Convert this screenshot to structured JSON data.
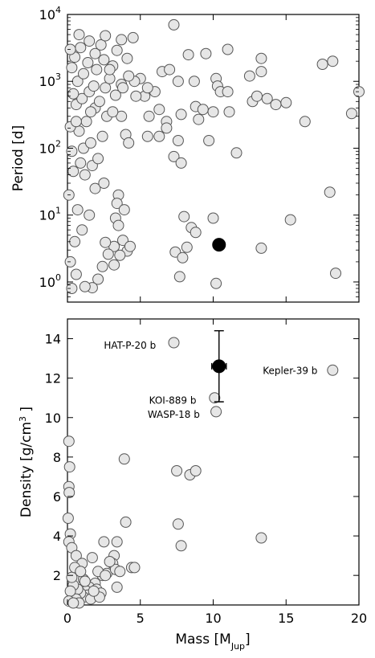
{
  "chart_data": [
    {
      "type": "scatter",
      "ylabel": "Period [d]",
      "xlim": [
        0,
        20
      ],
      "ylim": [
        0.5,
        10000
      ],
      "yscale": "log",
      "y_ticks": [
        {
          "value": 1,
          "base": "10",
          "exp": "0"
        },
        {
          "value": 10,
          "base": "10",
          "exp": "1"
        },
        {
          "value": 100,
          "base": "10",
          "exp": "2"
        },
        {
          "value": 1000,
          "base": "10",
          "exp": "3"
        },
        {
          "value": 10000,
          "base": "10",
          "exp": "4"
        }
      ],
      "grid": false,
      "series": [
        {
          "values": [
            [
              7.3,
              7000
            ],
            [
              9.5,
              2600
            ],
            [
              11,
              3000
            ],
            [
              13.3,
              2200
            ],
            [
              18.2,
              2000
            ],
            [
              17.5,
              1800
            ],
            [
              8.3,
              2500
            ],
            [
              6.5,
              1400
            ],
            [
              7,
              1500
            ],
            [
              7.6,
              1000
            ],
            [
              8.7,
              1000
            ],
            [
              10.2,
              1100
            ],
            [
              10.3,
              850
            ],
            [
              12.5,
              1200
            ],
            [
              13.3,
              1400
            ],
            [
              10.5,
              700
            ],
            [
              11,
              700
            ],
            [
              12.7,
              500
            ],
            [
              13,
              600
            ],
            [
              13.7,
              550
            ],
            [
              14.3,
              450
            ],
            [
              15,
              480
            ],
            [
              16.3,
              250
            ],
            [
              19.5,
              330
            ],
            [
              20,
              700
            ],
            [
              8.8,
              420
            ],
            [
              9.3,
              380
            ],
            [
              10,
              350
            ],
            [
              11.1,
              350
            ],
            [
              9,
              270
            ],
            [
              6.8,
              250
            ],
            [
              7.8,
              320
            ],
            [
              6.8,
              200
            ],
            [
              6.3,
              150
            ],
            [
              7.6,
              130
            ],
            [
              9.7,
              130
            ],
            [
              11.6,
              85
            ],
            [
              7.3,
              75
            ],
            [
              7.8,
              60
            ],
            [
              5.5,
              150
            ],
            [
              5,
              1100
            ],
            [
              5.3,
              600
            ],
            [
              5.6,
              300
            ],
            [
              6,
              700
            ],
            [
              6.3,
              380
            ],
            [
              5.5,
              800
            ],
            [
              4,
              160
            ],
            [
              3.7,
              300
            ],
            [
              4.2,
              120
            ],
            [
              4.6,
              1000
            ],
            [
              18,
              22
            ],
            [
              15.3,
              8.5
            ],
            [
              13.3,
              3.2
            ],
            [
              10,
              9
            ],
            [
              10.2,
              0.95
            ],
            [
              8,
              9.5
            ],
            [
              8.5,
              6.5
            ],
            [
              8.8,
              5.5
            ],
            [
              8.2,
              3.3
            ],
            [
              7.4,
              2.8
            ],
            [
              7.9,
              2.3
            ],
            [
              7.7,
              1.2
            ],
            [
              18.4,
              1.35
            ],
            [
              4.1,
              2.9
            ],
            [
              3.8,
              4.2
            ],
            [
              4.3,
              3.4
            ],
            [
              3.5,
              20
            ],
            [
              3.4,
              15
            ],
            [
              3.9,
              12
            ],
            [
              3.3,
              9
            ],
            [
              3.5,
              7
            ],
            [
              3.2,
              1.8
            ],
            [
              3.6,
              2.5
            ],
            [
              3.2,
              3.4
            ],
            [
              2.8,
              2.6
            ],
            [
              2.6,
              3.9
            ],
            [
              2.4,
              1.7
            ],
            [
              2.1,
              1.1
            ],
            [
              1.7,
              0.82
            ],
            [
              1.2,
              0.85
            ],
            [
              0.3,
              0.8
            ],
            [
              0.6,
              1.3
            ],
            [
              0.2,
              2
            ],
            [
              0.5,
              4
            ],
            [
              1,
              6
            ],
            [
              1.5,
              10
            ],
            [
              0.7,
              12
            ],
            [
              0.1,
              20
            ],
            [
              1.9,
              25
            ],
            [
              2.5,
              30
            ],
            [
              1.2,
              40
            ],
            [
              0.4,
              45
            ],
            [
              0.9,
              60
            ],
            [
              1.7,
              55
            ],
            [
              2.1,
              70
            ],
            [
              0.3,
              90
            ],
            [
              1.1,
              100
            ],
            [
              1.6,
              120
            ],
            [
              2.4,
              150
            ],
            [
              0.8,
              180
            ],
            [
              0.2,
              210
            ],
            [
              1.3,
              250
            ],
            [
              2.7,
              300
            ],
            [
              3.1,
              350
            ],
            [
              1.9,
              400
            ],
            [
              0.6,
              450
            ],
            [
              2.2,
              500
            ],
            [
              1,
              550
            ],
            [
              3.3,
              620
            ],
            [
              0.4,
              650
            ],
            [
              1.5,
              700
            ],
            [
              2.6,
              800
            ],
            [
              1.8,
              850
            ],
            [
              3.7,
              900
            ],
            [
              0.7,
              1000
            ],
            [
              2.9,
              1100
            ],
            [
              4.2,
              1200
            ],
            [
              1.1,
              1300
            ],
            [
              2,
              1500
            ],
            [
              0.3,
              1600
            ],
            [
              3.1,
              1700
            ],
            [
              1.4,
              1900
            ],
            [
              2.5,
              2100
            ],
            [
              0.5,
              2300
            ],
            [
              1.9,
              2600
            ],
            [
              3.4,
              2900
            ],
            [
              0.9,
              3200
            ],
            [
              2.3,
              3500
            ],
            [
              1.5,
              4000
            ],
            [
              3.7,
              4200
            ],
            [
              0.8,
              5000
            ],
            [
              4.5,
              4500
            ],
            [
              2.6,
              4800
            ],
            [
              0.2,
              3000
            ],
            [
              4.1,
              2200
            ],
            [
              2.9,
              1500
            ],
            [
              3.8,
              800
            ],
            [
              4.7,
              600
            ],
            [
              1.6,
              350
            ],
            [
              0.6,
              250
            ]
          ]
        },
        {
          "values": [
            [
              10.4,
              3.6
            ]
          ],
          "xerr": 0.35,
          "highlight": true
        }
      ]
    },
    {
      "type": "scatter",
      "xlabel": "Mass [M",
      "xlabel_sub": "Jup",
      "xlabel_end": "]",
      "ylabel": "Density [g/cm",
      "ylabel_sup": "3",
      "ylabel_end": " ]",
      "xlim": [
        0,
        20
      ],
      "ylim": [
        0.5,
        15
      ],
      "x_ticks": [
        "0",
        "5",
        "10",
        "15",
        "20"
      ],
      "y_ticks": [
        "2",
        "4",
        "6",
        "8",
        "10",
        "12",
        "14"
      ],
      "grid": false,
      "annotations": [
        {
          "text": "HAT-P-20 b",
          "x": 2.5,
          "y": 13.5
        },
        {
          "text": "Kepler-39 b",
          "x": 13.4,
          "y": 12.2
        },
        {
          "text": "KOI-889 b",
          "x": 5.6,
          "y": 10.7
        },
        {
          "text": "WASP-18 b",
          "x": 5.5,
          "y": 10
        },
        {
          "text": "Kepler-39 b",
          "x": 0,
          "y": 0,
          "hidden": true
        }
      ],
      "series": [
        {
          "values": [
            [
              7.3,
              13.8
            ],
            [
              18.2,
              12.4
            ],
            [
              10.1,
              11
            ],
            [
              10.2,
              10.3
            ],
            [
              3.9,
              7.9
            ],
            [
              7.5,
              7.3
            ],
            [
              8.4,
              7.1
            ],
            [
              8.8,
              7.3
            ],
            [
              4,
              4.7
            ],
            [
              7.6,
              4.6
            ],
            [
              7.8,
              3.5
            ],
            [
              13.3,
              3.9
            ],
            [
              0.1,
              8.8
            ],
            [
              0.15,
              7.5
            ],
            [
              0.1,
              6.5
            ],
            [
              0.12,
              6.2
            ],
            [
              0.05,
              4.9
            ],
            [
              0.2,
              4.1
            ],
            [
              0.1,
              3.7
            ],
            [
              0.3,
              3.4
            ],
            [
              0.6,
              3.0
            ],
            [
              1,
              2.6
            ],
            [
              1.1,
              1.8
            ],
            [
              1.7,
              2.9
            ],
            [
              2.5,
              3.7
            ],
            [
              3.4,
              3.7
            ],
            [
              3.2,
              3.0
            ],
            [
              3.1,
              2.6
            ],
            [
              2.7,
              2.1
            ],
            [
              2.4,
              2.0
            ],
            [
              2.1,
              2.2
            ],
            [
              1.9,
              1.6
            ],
            [
              1.5,
              1.4
            ],
            [
              1.3,
              1.2
            ],
            [
              1.4,
              1.0
            ],
            [
              1.1,
              0.9
            ],
            [
              0.9,
              1.1
            ],
            [
              0.7,
              1.3
            ],
            [
              0.6,
              0.8
            ],
            [
              0.4,
              1.5
            ],
            [
              0.3,
              1.9
            ],
            [
              0.5,
              2.4
            ],
            [
              0.2,
              1.2
            ],
            [
              0.1,
              0.7
            ],
            [
              0.8,
              0.6
            ],
            [
              1.6,
              0.8
            ],
            [
              2,
              1.3
            ],
            [
              2.3,
              1.1
            ],
            [
              3.3,
              2.3
            ],
            [
              4.4,
              2.4
            ],
            [
              4.6,
              2.4
            ],
            [
              3.6,
              2.2
            ],
            [
              3.4,
              1.4
            ],
            [
              2.9,
              2.7
            ],
            [
              2.6,
              2.0
            ],
            [
              1.2,
              1.7
            ],
            [
              0.9,
              2.2
            ],
            [
              0.4,
              0.6
            ],
            [
              2.2,
              0.9
            ],
            [
              1.8,
              1.2
            ]
          ]
        },
        {
          "values": [
            [
              10.4,
              12.6
            ]
          ],
          "xerr": 0.5,
          "yerr": [
            1.8,
            1.8
          ],
          "highlight": true
        }
      ]
    }
  ]
}
